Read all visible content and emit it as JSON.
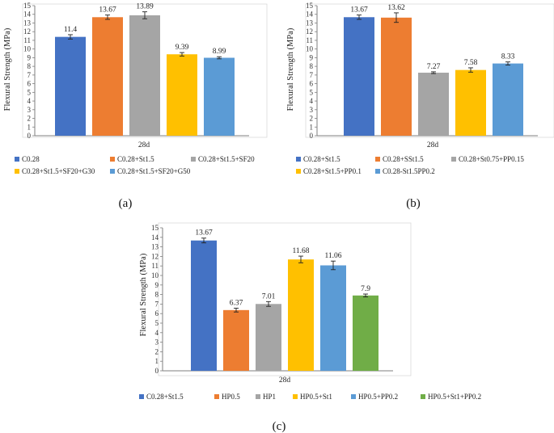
{
  "chart_data": [
    {
      "type": "bar",
      "panel": "(a)",
      "ylabel": "Flexural Strength (MPa)",
      "xlabel": "28d",
      "ylim": [
        0,
        15
      ],
      "ytick_step": 1,
      "grid": false,
      "legend_position": "bottom",
      "series": [
        {
          "name": "C0.28",
          "value": 11.4,
          "error": 0.25,
          "color": "#4472C4"
        },
        {
          "name": "C0.28+St1.5",
          "value": 13.67,
          "error": 0.25,
          "color": "#ED7D31"
        },
        {
          "name": "C0.28+St1.5+SF20",
          "value": 13.89,
          "error": 0.4,
          "color": "#A5A5A5"
        },
        {
          "name": "C0.28+St1.5+SF20+G30",
          "value": 9.39,
          "error": 0.2,
          "color": "#FFC000"
        },
        {
          "name": "C0.28+St1.5+SF20+G50",
          "value": 8.99,
          "error": 0.12,
          "color": "#5B9BD5"
        }
      ],
      "data_labels": [
        "11.4",
        "13.67",
        "13.89",
        "9.39",
        "8.99"
      ],
      "legend_labels": [
        "C0.28",
        "C0.28+St1.5",
        "C0.28+St1.5+SF20",
        "C0.28+St1.5+SF20+G30",
        "C0.28+St1.5+SF20+G50"
      ]
    },
    {
      "type": "bar",
      "panel": "(b)",
      "ylabel": "Flexural Strength (MPa)",
      "xlabel": "28d",
      "ylim": [
        0,
        15
      ],
      "ytick_step": 1,
      "grid": false,
      "legend_position": "bottom",
      "series": [
        {
          "name": "C0.28+St1.5",
          "value": 13.67,
          "error": 0.25,
          "color": "#4472C4"
        },
        {
          "name": "C0.28+SSt1.5",
          "value": 13.62,
          "error": 0.55,
          "color": "#ED7D31"
        },
        {
          "name": "C0.28+St0.75+PP0.15",
          "value": 7.27,
          "error": 0.1,
          "color": "#A5A5A5"
        },
        {
          "name": "C0.28+St1.5+PP0.1",
          "value": 7.58,
          "error": 0.25,
          "color": "#FFC000"
        },
        {
          "name": "C0.28+St1.5PP0.2",
          "value": 8.33,
          "error": 0.18,
          "color": "#5B9BD5"
        }
      ],
      "data_labels": [
        "13.67",
        "13.62",
        "7.27",
        "7.58",
        "8.33"
      ],
      "legend_labels": [
        "C0.28+St1.5",
        "C0.28+SSt1.5",
        "C0.28+St0.75+PP0.15",
        "C0.28+St1.5+PP0.1",
        "C0.28-St1.5PP0.2"
      ]
    },
    {
      "type": "bar",
      "panel": "(c)",
      "ylabel": "Flexural Strength (MPa)",
      "xlabel": "28d",
      "ylim": [
        0,
        15
      ],
      "ytick_step": 1,
      "grid": false,
      "legend_position": "bottom",
      "series": [
        {
          "name": "C0.28+St1.5",
          "value": 13.67,
          "error": 0.25,
          "color": "#4472C4"
        },
        {
          "name": "HP0.5",
          "value": 6.37,
          "error": 0.2,
          "color": "#ED7D31"
        },
        {
          "name": "HP1",
          "value": 7.01,
          "error": 0.25,
          "color": "#A5A5A5"
        },
        {
          "name": "HP0.5+St1",
          "value": 11.68,
          "error": 0.35,
          "color": "#FFC000"
        },
        {
          "name": "HP0.5+PP0.2",
          "value": 11.06,
          "error": 0.45,
          "color": "#5B9BD5"
        },
        {
          "name": "HP0.5+St1+PP0.2",
          "value": 7.9,
          "error": 0.15,
          "color": "#70AD47"
        }
      ],
      "data_labels": [
        "13.67",
        "6.37",
        "7.01",
        "11.68",
        "11.06",
        "7.9"
      ],
      "legend_labels": [
        "C0.28+St1.5",
        "HP0.5",
        "HP1",
        "HP0.5+St1",
        "HP0.5+PP0.2",
        "HP0.5+St1+PP0.2"
      ]
    }
  ]
}
